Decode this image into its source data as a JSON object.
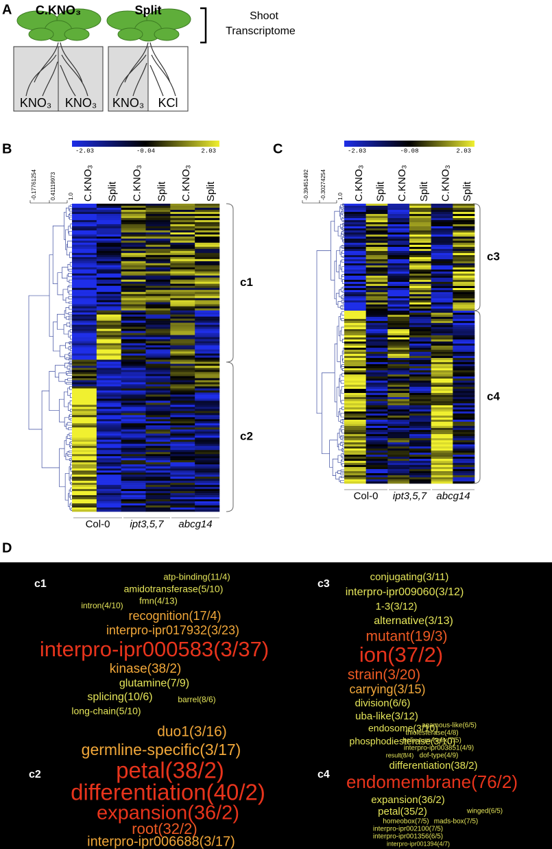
{
  "panel_a": {
    "label": "A",
    "plants": [
      {
        "title": "C.KNO₃",
        "left": "KNO₃",
        "right": "KNO₃"
      },
      {
        "title": "Split",
        "left": "KNO₃",
        "right": "KCl"
      }
    ],
    "bracket_label": [
      "Shoot",
      "Transcriptome"
    ]
  },
  "panel_b": {
    "label": "B",
    "colorbar": [
      "-2.03",
      "-0.04",
      "2.03"
    ],
    "dendrogram_scale": [
      "-0.17761254",
      "0.41119973",
      "1.0"
    ],
    "columns": [
      "C.KNO₃",
      "Split",
      "C.KNO₃",
      "Split",
      "C.KNO₃",
      "Split"
    ],
    "groups": [
      "Col-0",
      "ipt3,5,7",
      "abcg14"
    ],
    "clusters": [
      "c1",
      "c2"
    ]
  },
  "panel_c": {
    "label": "C",
    "colorbar": [
      "-2.03",
      "-0.08",
      "2.03"
    ],
    "dendrogram_scale": [
      "-0.39451492",
      "-0.30274254",
      "1.0"
    ],
    "columns": [
      "C.KNO₃",
      "Split",
      "C.KNO₃",
      "Split",
      "C.KNO₃",
      "Split"
    ],
    "groups": [
      "Col-0",
      "ipt3,5,7",
      "abcg14"
    ],
    "clusters": [
      "c3",
      "c4"
    ]
  },
  "panel_d": {
    "label": "D",
    "clouds": [
      {
        "name": "c1",
        "words": [
          {
            "text": "atp-binding(11/4)",
            "color": "#e6e65a"
          },
          {
            "text": "amidotransferase(5/10)",
            "color": "#e6e65a"
          },
          {
            "text": "fmn(4/13)",
            "color": "#e6e65a"
          },
          {
            "text": "intron(4/10)",
            "color": "#e6e65a"
          },
          {
            "text": "recognition(17/4)",
            "color": "#f2a83a"
          },
          {
            "text": "interpro-ipr017932(3/23)",
            "color": "#f2a83a"
          },
          {
            "text": "interpro-ipr000583(3/37)",
            "color": "#e8341c"
          },
          {
            "text": "kinase(38/2)",
            "color": "#f2a83a"
          },
          {
            "text": "glutamine(7/9)",
            "color": "#e6e65a"
          },
          {
            "text": "splicing(10/6)",
            "color": "#e6e65a"
          },
          {
            "text": "barrel(8/6)",
            "color": "#e6e65a"
          },
          {
            "text": "long-chain(5/10)",
            "color": "#e6e65a"
          }
        ]
      },
      {
        "name": "c3",
        "words": [
          {
            "text": "conjugating(3/11)",
            "color": "#e6e65a"
          },
          {
            "text": "interpro-ipr009060(3/12)",
            "color": "#e6e65a"
          },
          {
            "text": "1-3(3/12)",
            "color": "#e6e65a"
          },
          {
            "text": "alternative(3/13)",
            "color": "#e6e65a"
          },
          {
            "text": "mutant(19/3)",
            "color": "#ee5a24"
          },
          {
            "text": "ion(37/2)",
            "color": "#e8341c"
          },
          {
            "text": "strain(3/20)",
            "color": "#ee5a24"
          },
          {
            "text": "carrying(3/15)",
            "color": "#f2a83a"
          },
          {
            "text": "division(6/6)",
            "color": "#e6e65a"
          },
          {
            "text": "uba-like(3/12)",
            "color": "#e6e65a"
          },
          {
            "text": "endosome(3/10)",
            "color": "#e6e65a"
          },
          {
            "text": "phosphodiesterase(3/10)",
            "color": "#e6e65a"
          }
        ]
      },
      {
        "name": "c2",
        "words": [
          {
            "text": "duo1(3/16)",
            "color": "#f2a83a"
          },
          {
            "text": "germline-specific(3/17)",
            "color": "#f2a83a"
          },
          {
            "text": "petal(38/2)",
            "color": "#e8341c"
          },
          {
            "text": "differentiation(40/2)",
            "color": "#e8341c"
          },
          {
            "text": "expansion(36/2)",
            "color": "#e8341c"
          },
          {
            "text": "root(32/2)",
            "color": "#ee5a24"
          },
          {
            "text": "interpro-ipr006688(3/17)",
            "color": "#f2a83a"
          }
        ]
      },
      {
        "name": "c4",
        "words": [
          {
            "text": "agamous-like(6/5)",
            "color": "#e6e65a"
          },
          {
            "text": "thiolesterase(4/8)",
            "color": "#e6e65a"
          },
          {
            "text": "helix-turn-helix(7/5)",
            "color": "#e6e65a"
          },
          {
            "text": "interpro-ipr003851(4/9)",
            "color": "#e6e65a"
          },
          {
            "text": "result(8/4)",
            "color": "#e6e65a"
          },
          {
            "text": "dof-type(4/9)",
            "color": "#e6e65a"
          },
          {
            "text": "differentiation(38/2)",
            "color": "#e6e65a"
          },
          {
            "text": "endomembrane(76/2)",
            "color": "#e8341c"
          },
          {
            "text": "expansion(36/2)",
            "color": "#e6e65a"
          },
          {
            "text": "petal(35/2)",
            "color": "#e6e65a"
          },
          {
            "text": "winged(6/5)",
            "color": "#e6e65a"
          },
          {
            "text": "homeobox(7/5)",
            "color": "#e6e65a"
          },
          {
            "text": "mads-box(7/5)",
            "color": "#e6e65a"
          },
          {
            "text": "interpro-ipr002100(7/5)",
            "color": "#e6e65a"
          },
          {
            "text": "interpro-ipr001356(6/5)",
            "color": "#e6e65a"
          },
          {
            "text": "interpro-ipr001394(4/7)",
            "color": "#e6e65a"
          }
        ]
      }
    ]
  }
}
